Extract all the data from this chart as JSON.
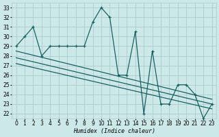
{
  "bg_color": "#cce8e8",
  "grid_color": "#aacccc",
  "line_color": "#1a6060",
  "xlabel": "Humidex (Indice chaleur)",
  "xlim": [
    -0.5,
    23.5
  ],
  "ylim": [
    21.5,
    33.5
  ],
  "xticks": [
    0,
    1,
    2,
    3,
    4,
    5,
    6,
    7,
    8,
    9,
    10,
    11,
    12,
    13,
    14,
    15,
    16,
    17,
    18,
    19,
    20,
    21,
    22,
    23
  ],
  "yticks": [
    22,
    23,
    24,
    25,
    26,
    27,
    28,
    29,
    30,
    31,
    32,
    33
  ],
  "main_x": [
    0,
    1,
    2,
    3,
    4,
    5,
    6,
    7,
    8,
    9,
    10,
    11,
    12,
    13,
    14,
    15,
    16,
    17,
    18,
    19,
    20,
    21,
    22,
    23
  ],
  "main_y": [
    29,
    30,
    31,
    28,
    29,
    29,
    29,
    29,
    29,
    31.5,
    33,
    32,
    26,
    26,
    30.5,
    22,
    28.5,
    23,
    23,
    25,
    25,
    24,
    21.5,
    23
  ],
  "reg_lines": [
    [
      0,
      28.5,
      23,
      23.5
    ],
    [
      0,
      27.8,
      23,
      23.0
    ],
    [
      0,
      27.2,
      23,
      22.5
    ]
  ]
}
